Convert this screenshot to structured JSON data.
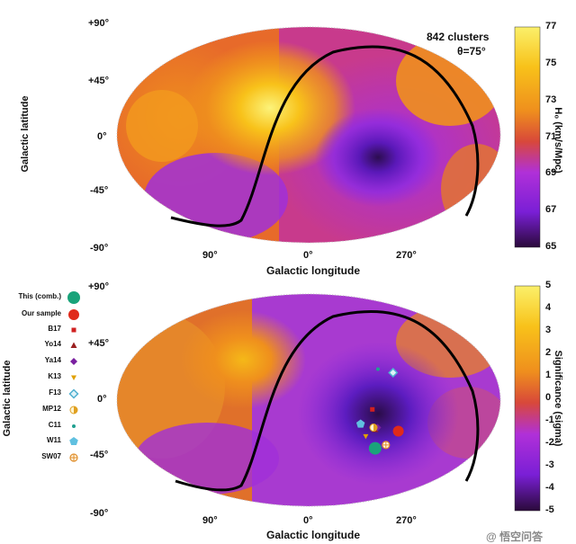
{
  "chart_data": [
    {
      "type": "heatmap",
      "projection": "mollweide",
      "annotation": [
        "842 clusters",
        "θ=75°"
      ],
      "xlabel": "Galactic longitude",
      "ylabel": "Galactic latitude",
      "x_ticks": [
        "90°",
        "0°",
        "270°"
      ],
      "y_ticks": [
        "+90°",
        "+45°",
        "0°",
        "-45°",
        "-90°"
      ],
      "colorbar": {
        "label": "H₀ (km/s/Mpc)",
        "min": 65,
        "max": 77,
        "ticks": [
          "77",
          "75",
          "73",
          "71",
          "69",
          "67",
          "65"
        ]
      },
      "colorscale": [
        "#2a0a3a",
        "#7a1fd6",
        "#b030d8",
        "#d8483a",
        "#f08a1e",
        "#f8c21a",
        "#fbf06a"
      ],
      "hot_region": {
        "l": 45,
        "b": 25,
        "value": 77
      },
      "cold_region": {
        "l": 285,
        "b": -15,
        "value": 65
      },
      "curve": "galactic-plane boundary line"
    },
    {
      "type": "heatmap",
      "projection": "mollweide",
      "xlabel": "Galactic longitude",
      "ylabel": "Galactic latitude",
      "x_ticks": [
        "90°",
        "0°",
        "270°"
      ],
      "y_ticks": [
        "+90°",
        "+45°",
        "0°",
        "-45°",
        "-90°"
      ],
      "colorbar": {
        "label": "Significance (sigma)",
        "min": -5,
        "max": 5,
        "ticks": [
          "5",
          "4",
          "3",
          "2",
          "1",
          "0",
          "-1",
          "-2",
          "-3",
          "-4",
          "-5"
        ]
      },
      "colorscale": [
        "#2a0a3a",
        "#7a1fd6",
        "#b030d8",
        "#d8483a",
        "#f08a1e",
        "#f8c21a",
        "#fbf06a"
      ],
      "legend": [
        {
          "name": "This (comb.)",
          "color": "#1aa37a",
          "marker": "circle-large"
        },
        {
          "name": "Our sample",
          "color": "#e02a1a",
          "marker": "circle"
        },
        {
          "name": "B17",
          "color": "#d02020",
          "marker": "square"
        },
        {
          "name": "Yo14",
          "color": "#9a2020",
          "marker": "triangle"
        },
        {
          "name": "Ya14",
          "color": "#7a20a0",
          "marker": "diamond"
        },
        {
          "name": "K13",
          "color": "#e0a000",
          "marker": "triangle-down"
        },
        {
          "name": "F13",
          "color": "#50b0d0",
          "marker": "diamond-open"
        },
        {
          "name": "MP12",
          "color": "#e0a020",
          "marker": "half-circle"
        },
        {
          "name": "C11",
          "color": "#20a090",
          "marker": "small-dot"
        },
        {
          "name": "W11",
          "color": "#60c0e0",
          "marker": "pentagon"
        },
        {
          "name": "SW07",
          "color": "#e09030",
          "marker": "circle-cross"
        }
      ],
      "points": [
        {
          "name": "This (comb.)",
          "l": 290,
          "b": -27
        },
        {
          "name": "Our sample",
          "l": 272,
          "b": -17
        },
        {
          "name": "B17",
          "l": 300,
          "b": -5
        },
        {
          "name": "Yo14",
          "l": 295,
          "b": -16
        },
        {
          "name": "Ya14",
          "l": 293,
          "b": -15
        },
        {
          "name": "K13",
          "l": 303,
          "b": -20
        },
        {
          "name": "F13",
          "l": 278,
          "b": 15
        },
        {
          "name": "MP12",
          "l": 297,
          "b": -15
        },
        {
          "name": "C11",
          "l": 292,
          "b": 17
        },
        {
          "name": "W11",
          "l": 310,
          "b": -13
        },
        {
          "name": "SW07",
          "l": 280,
          "b": -25
        }
      ]
    }
  ],
  "watermark": "@ 悟空问答"
}
